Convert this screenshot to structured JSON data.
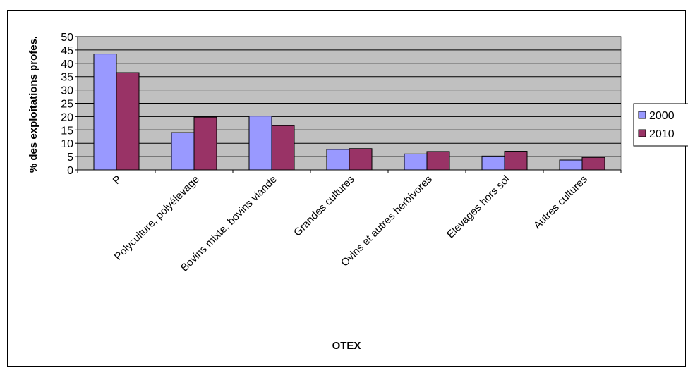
{
  "chart_data": {
    "type": "bar",
    "title": "",
    "xlabel": "OTEX",
    "ylabel": "% des exploitations profes.",
    "ylim": [
      0,
      50
    ],
    "yticks": [
      0,
      5,
      10,
      15,
      20,
      25,
      30,
      35,
      40,
      45,
      50
    ],
    "grid": true,
    "legend_position": "right",
    "categories": [
      "P",
      "Polyculture, polyélevage",
      "Bovins mixte, bovins viande",
      "Grandes cultures",
      "Ovins et autres herbivores",
      "Elevages hors sol",
      "Autres cultures"
    ],
    "series": [
      {
        "name": "2000",
        "color": "#9999ff",
        "values": [
          43.5,
          14,
          20.2,
          7.7,
          6,
          5.2,
          3.7
        ]
      },
      {
        "name": "2010",
        "color": "#993366",
        "values": [
          36.5,
          19.8,
          16.6,
          8,
          6.9,
          7,
          4.7
        ]
      }
    ],
    "plot_background": "#c0c0c0"
  }
}
